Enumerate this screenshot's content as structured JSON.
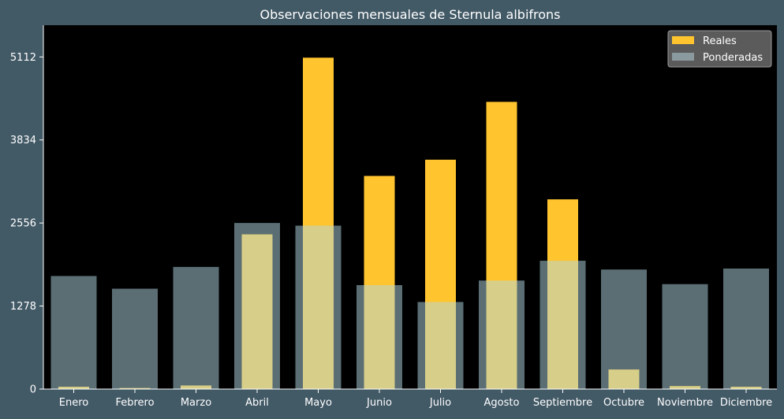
{
  "chart_data": {
    "type": "bar",
    "title": "Observaciones mensuales de Sternula albifrons",
    "xlabel": "",
    "ylabel": "",
    "categories": [
      "Enero",
      "Febrero",
      "Marzo",
      "Abril",
      "Mayo",
      "Junio",
      "Julio",
      "Agosto",
      "Septiembre",
      "Octubre",
      "Noviembre",
      "Diciembre"
    ],
    "series": [
      {
        "name": "Reales",
        "color": "#FFC42E",
        "values": [
          35,
          15,
          55,
          2380,
          5100,
          3280,
          3530,
          4420,
          2920,
          300,
          45,
          35
        ]
      },
      {
        "name": "Ponderadas",
        "color": "#B6C5C9",
        "opacity": 0.5,
        "values": [
          1740,
          1545,
          1880,
          2556,
          2515,
          1600,
          1340,
          1670,
          1975,
          1840,
          1615,
          1855
        ]
      }
    ],
    "yticks": [
      0,
      1278,
      2556,
      3834,
      5112
    ],
    "ylim": [
      0,
      5600
    ],
    "grid": false,
    "legend": "top-right",
    "background": "#000000",
    "frame_background": "#425966",
    "text_color": "#FFFFFF"
  }
}
